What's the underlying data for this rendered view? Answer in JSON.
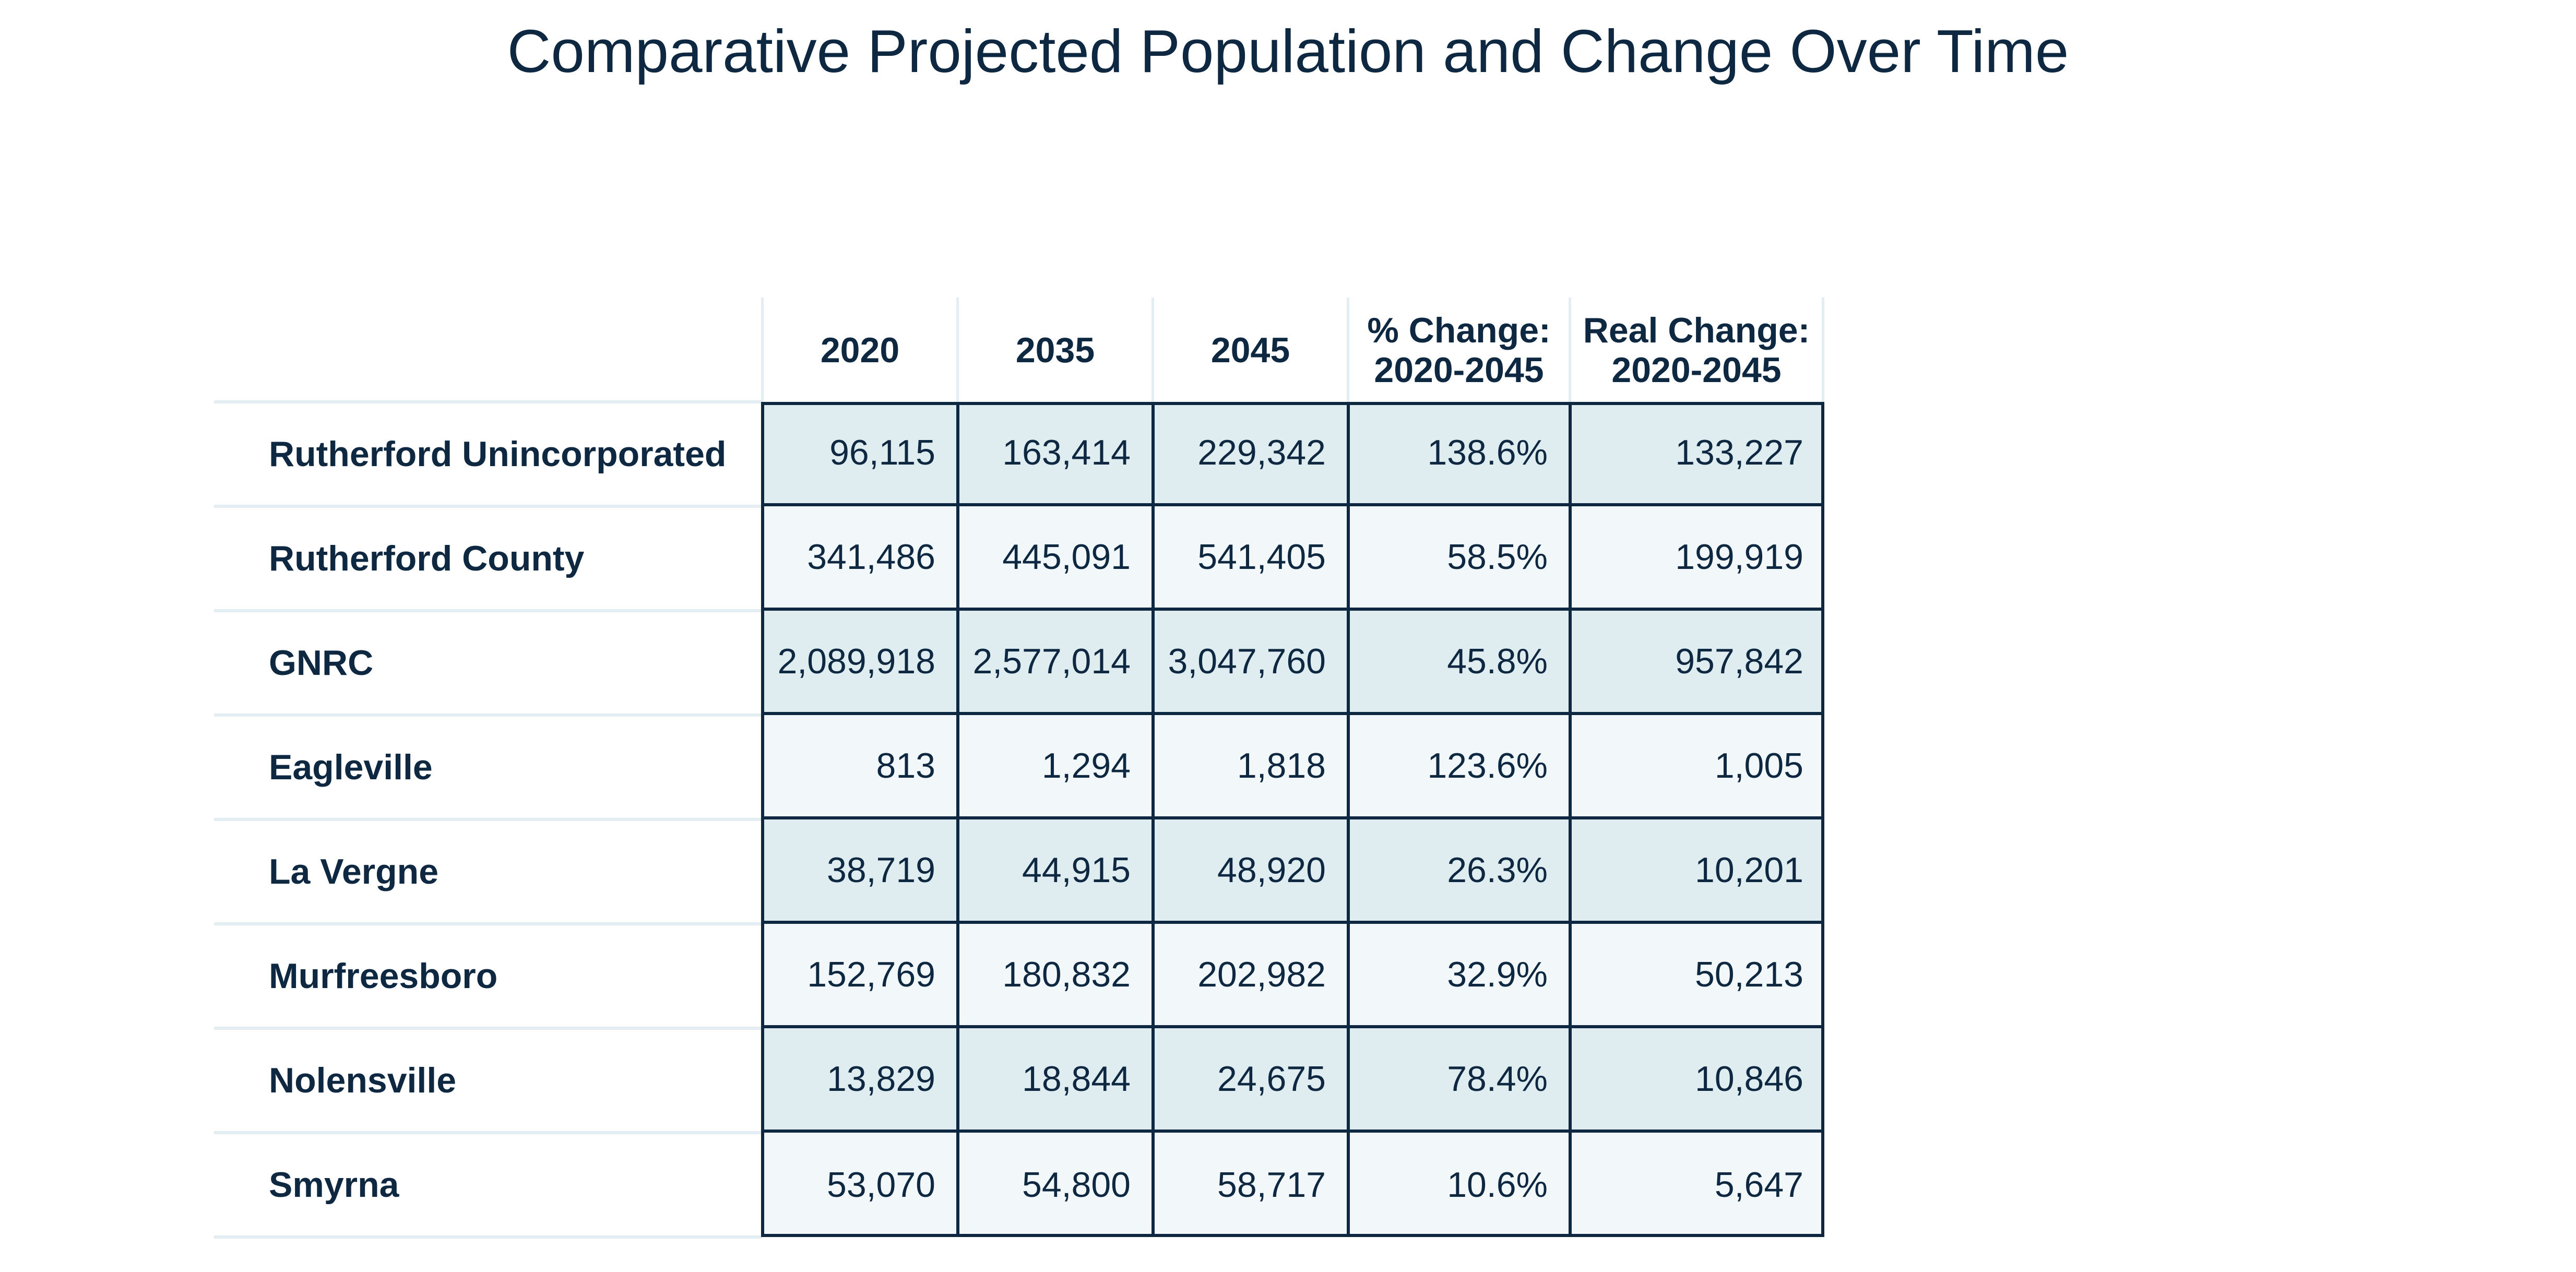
{
  "title": "Comparative Projected Population and Change Over Time",
  "table": {
    "columns": [
      "",
      "2020",
      "2035",
      "2045",
      "% Change:\n2020-2045",
      "Real Change:\n2020-2045"
    ],
    "rows": [
      {
        "label": "Rutherford Unincorporated",
        "values": [
          "96,115",
          "163,414",
          "229,342",
          "138.6%",
          "133,227"
        ]
      },
      {
        "label": "Rutherford County",
        "values": [
          "341,486",
          "445,091",
          "541,405",
          "58.5%",
          "199,919"
        ]
      },
      {
        "label": "GNRC",
        "values": [
          "2,089,918",
          "2,577,014",
          "3,047,760",
          "45.8%",
          "957,842"
        ]
      },
      {
        "label": "Eagleville",
        "values": [
          "813",
          "1,294",
          "1,818",
          "123.6%",
          "1,005"
        ]
      },
      {
        "label": "La Vergne",
        "values": [
          "38,719",
          "44,915",
          "48,920",
          "26.3%",
          "10,201"
        ]
      },
      {
        "label": "Murfreesboro",
        "values": [
          "152,769",
          "180,832",
          "202,982",
          "32.9%",
          "50,213"
        ]
      },
      {
        "label": "Nolensville",
        "values": [
          "13,829",
          "18,844",
          "24,675",
          "78.4%",
          "10,846"
        ]
      },
      {
        "label": "Smyrna",
        "values": [
          "53,070",
          "54,800",
          "58,717",
          "10.6%",
          "5,647"
        ]
      }
    ]
  },
  "colors": {
    "text": "#0e2841",
    "row_dark": "#dfedf1",
    "row_light": "#f2f8f9",
    "divider": "#e3eef2",
    "border": "#0e2841"
  }
}
